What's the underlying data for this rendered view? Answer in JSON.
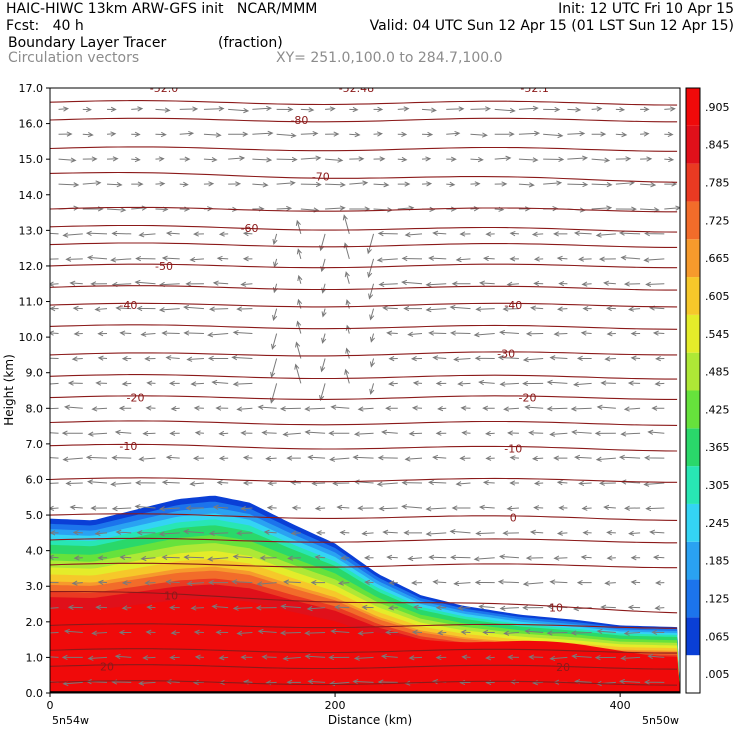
{
  "header": {
    "left1": "HAIC-HIWC 13km ARW-GFS init   NCAR/MMM",
    "right1": "Init: 12 UTC Fri 10 Apr 15",
    "left2": "Fcst:   40 h",
    "right2": "Valid: 04 UTC Sun 12 Apr 15 (01 LST Sun 12 Apr 15)",
    "field": "Boundary Layer Tracer",
    "units": "(fraction)",
    "vectors": "Circulation vectors",
    "xy": "XY= 251.0,100.0 to 284.7,100.0"
  },
  "chart_data": {
    "type": "heatmap",
    "title": "Boundary Layer Tracer",
    "units": "(fraction)",
    "xlabel": "Distance (km)",
    "ylabel": "Height (km)",
    "xlim": [
      0,
      442
    ],
    "ylim": [
      0,
      17
    ],
    "xticks": [
      "0",
      "200",
      "400"
    ],
    "yticks": [
      "0.0",
      "1.0",
      "2.0",
      "3.0",
      "4.0",
      "5.0",
      "6.0",
      "7.0",
      "8.0",
      "9.0",
      "10.0",
      "11.0",
      "12.0",
      "13.0",
      "14.0",
      "15.0",
      "16.0",
      "17.0"
    ],
    "x_endpoints": {
      "left": "5n54w",
      "right": "5n50w"
    },
    "colorbar_labels": [
      ".005",
      ".065",
      ".125",
      ".185",
      ".245",
      ".305",
      ".365",
      ".425",
      ".485",
      ".545",
      ".605",
      ".665",
      ".725",
      ".785",
      ".845",
      ".905"
    ],
    "colorbar_colors": [
      "#ffffff",
      "#0a3fd6",
      "#1c74ec",
      "#2aa2f2",
      "#34d4f4",
      "#28e6b4",
      "#2ad86a",
      "#66e23c",
      "#aee836",
      "#e4ec2a",
      "#f6c82a",
      "#f69a2c",
      "#f26c2a",
      "#ea3a22",
      "#e0101a",
      "#f00a0a"
    ],
    "tracer_top_km": [
      [
        0,
        4.9
      ],
      [
        30,
        4.85
      ],
      [
        60,
        5.15
      ],
      [
        90,
        5.45
      ],
      [
        115,
        5.55
      ],
      [
        140,
        5.35
      ],
      [
        170,
        4.75
      ],
      [
        200,
        4.2
      ],
      [
        230,
        3.35
      ],
      [
        260,
        2.75
      ],
      [
        290,
        2.45
      ],
      [
        330,
        2.2
      ],
      [
        370,
        2.05
      ],
      [
        400,
        1.9
      ],
      [
        442,
        1.85
      ]
    ],
    "temperature_contours_C": [
      {
        "level": 20,
        "label": "20",
        "label_x_km": [
          40,
          360
        ]
      },
      {
        "level": 10,
        "label": "10",
        "label_x_km": [
          85,
          355
        ]
      },
      {
        "level": 0,
        "label": "0",
        "label_x_km": [
          325
        ]
      },
      {
        "level": -10,
        "label": "-10",
        "label_x_km": [
          55,
          325
        ]
      },
      {
        "level": -20,
        "label": "-20",
        "label_x_km": [
          60,
          335
        ]
      },
      {
        "level": -30,
        "label": "-30",
        "label_x_km": [
          320
        ]
      },
      {
        "level": -40,
        "label": "-40",
        "label_x_km": [
          55,
          325
        ]
      },
      {
        "level": -50,
        "label": "-50",
        "label_x_km": [
          80
        ]
      },
      {
        "level": -60,
        "label": "-60",
        "label_x_km": [
          140
        ]
      },
      {
        "level": -70,
        "label": "-70",
        "label_x_km": [
          190
        ]
      },
      {
        "level": -80,
        "label": "-80",
        "label_x_km": [
          175
        ]
      }
    ],
    "top_labels": [
      "-52.0",
      "-52.48",
      "-52.1"
    ],
    "legend": "colorbar right"
  }
}
